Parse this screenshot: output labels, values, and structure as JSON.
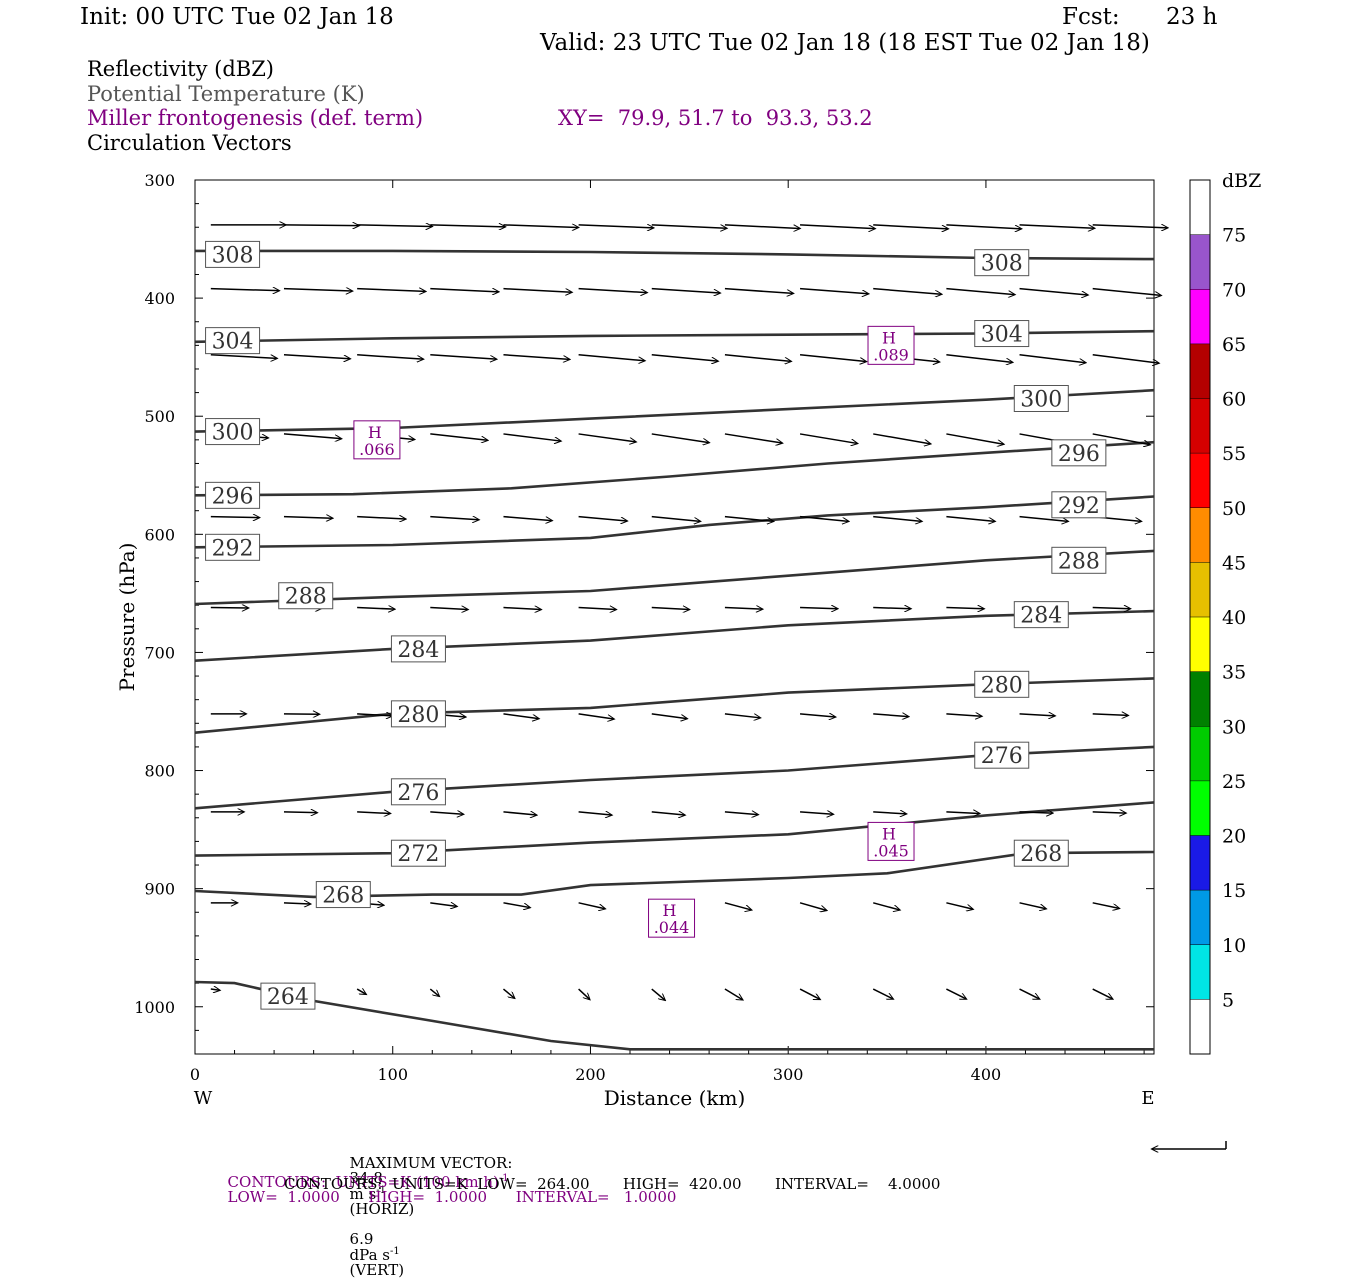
{
  "header": {
    "init": "Init: 00 UTC Tue 02 Jan 18",
    "fcst_label": "Fcst:",
    "fcst_value": "23 h",
    "valid": "Valid: 23 UTC Tue 02 Jan 18 (18 EST Tue 02 Jan 18)",
    "fields": [
      {
        "text": "Reflectivity (dBZ)",
        "color": "#000000"
      },
      {
        "text": "Potential Temperature (K)",
        "color": "#555555"
      },
      {
        "text": "Miller frontogenesis (def. term)",
        "color": "#800080"
      },
      {
        "text": "Circulation Vectors",
        "color": "#000000"
      }
    ],
    "xy": "XY=  79.9, 51.7 to  93.3, 53.2"
  },
  "chart_data": {
    "type": "line",
    "title": "",
    "xlabel": "Distance (km)",
    "ylabel": "Pressure (hPa)",
    "xlim": [
      0,
      485
    ],
    "ylim": [
      300,
      1040
    ],
    "y_inverted": true,
    "x_ticks": [
      0,
      100,
      200,
      300,
      400
    ],
    "y_ticks": [
      300,
      400,
      500,
      600,
      700,
      800,
      900,
      1000
    ],
    "x_end_labels": {
      "left": "W",
      "right": "E"
    },
    "isentropes": [
      {
        "label": "308",
        "x": [
          0,
          100,
          200,
          300,
          400,
          485
        ],
        "y": [
          360,
          360,
          361,
          363,
          366,
          367
        ],
        "label_pts": [
          [
            19,
            363
          ],
          [
            408,
            370
          ]
        ]
      },
      {
        "label": "304",
        "x": [
          0,
          100,
          200,
          300,
          400,
          485
        ],
        "y": [
          437,
          434,
          432,
          431,
          430,
          428
        ],
        "label_pts": [
          [
            19,
            436
          ],
          [
            408,
            430
          ]
        ]
      },
      {
        "label": "300",
        "x": [
          0,
          100,
          200,
          300,
          400,
          485
        ],
        "y": [
          513,
          510,
          502,
          494,
          486,
          478
        ],
        "label_pts": [
          [
            19,
            513
          ],
          [
            428,
            485
          ]
        ]
      },
      {
        "label": "296",
        "x": [
          0,
          80,
          160,
          240,
          320,
          400,
          485
        ],
        "y": [
          567,
          566,
          561,
          551,
          540,
          531,
          522
        ],
        "label_pts": [
          [
            19,
            567
          ],
          [
            447,
            531
          ]
        ]
      },
      {
        "label": "292",
        "x": [
          0,
          100,
          200,
          260,
          320,
          400,
          485
        ],
        "y": [
          611,
          609,
          603,
          592,
          584,
          577,
          568
        ],
        "label_pts": [
          [
            19,
            611
          ],
          [
            447,
            575
          ]
        ]
      },
      {
        "label": "288",
        "x": [
          0,
          100,
          200,
          300,
          400,
          485
        ],
        "y": [
          659,
          653,
          648,
          635,
          622,
          614
        ],
        "label_pts": [
          [
            56,
            652
          ],
          [
            447,
            622
          ]
        ]
      },
      {
        "label": "284",
        "x": [
          0,
          100,
          200,
          300,
          400,
          485
        ],
        "y": [
          707,
          697,
          690,
          677,
          669,
          665
        ],
        "label_pts": [
          [
            113,
            697
          ],
          [
            428,
            668
          ]
        ]
      },
      {
        "label": "280",
        "x": [
          0,
          100,
          200,
          300,
          400,
          485
        ],
        "y": [
          768,
          752,
          747,
          734,
          727,
          722
        ],
        "label_pts": [
          [
            113,
            752
          ],
          [
            408,
            727
          ]
        ]
      },
      {
        "label": "276",
        "x": [
          0,
          100,
          200,
          300,
          400,
          485
        ],
        "y": [
          832,
          818,
          808,
          800,
          787,
          780
        ],
        "label_pts": [
          [
            113,
            818
          ],
          [
            408,
            787
          ]
        ]
      },
      {
        "label": "272",
        "x": [
          0,
          100,
          200,
          300,
          400,
          485
        ],
        "y": [
          872,
          870,
          861,
          854,
          838,
          827
        ],
        "label_pts": [
          [
            113,
            870
          ]
        ]
      },
      {
        "label": "268",
        "x": [
          0,
          60,
          120,
          165,
          200,
          300,
          350,
          420,
          485
        ],
        "y": [
          902,
          907,
          905,
          905,
          897,
          891,
          887,
          870,
          869
        ],
        "label_pts": [
          [
            75,
            905
          ],
          [
            428,
            870
          ]
        ]
      },
      {
        "label": "264",
        "x": [
          0,
          20,
          60,
          120,
          180,
          220,
          300,
          485
        ],
        "y": [
          979,
          980,
          995,
          1012,
          1029,
          1036,
          1036,
          1036
        ],
        "label_pts": [
          [
            47,
            991
          ]
        ]
      }
    ],
    "frontogenesis_maxima": [
      {
        "label": "H",
        "value": ".089",
        "x": 352,
        "y": 440
      },
      {
        "label": "H",
        "value": ".066",
        "x": 92,
        "y": 520
      },
      {
        "label": "H",
        "value": ".045",
        "x": 352,
        "y": 860
      },
      {
        "label": "H",
        "value": ".044",
        "x": 241,
        "y": 925
      }
    ],
    "vector_rows": [
      {
        "p": 338,
        "x": [
          8,
          45,
          82,
          119,
          156,
          194,
          231,
          268,
          306,
          343,
          380,
          417,
          454
        ],
        "u": [
          34,
          34,
          34,
          34,
          34,
          34,
          34,
          34,
          34,
          34,
          34,
          34,
          34
        ],
        "w": [
          0.0,
          0.4,
          0.8,
          1.0,
          1.3,
          1.5,
          1.7,
          1.8,
          1.9,
          2.0,
          2.0,
          1.7,
          1.5
        ]
      },
      {
        "p": 392,
        "x": [
          8,
          45,
          82,
          119,
          156,
          194,
          231,
          268,
          306,
          343,
          380,
          417,
          454
        ],
        "u": [
          31,
          31,
          31,
          31,
          31,
          31,
          31,
          31,
          31,
          31,
          31,
          31,
          31
        ],
        "w": [
          1.0,
          1.2,
          1.4,
          1.6,
          1.8,
          2.0,
          2.2,
          2.4,
          2.6,
          2.8,
          3.0,
          3.2,
          3.4
        ]
      },
      {
        "p": 448,
        "x": [
          8,
          45,
          82,
          119,
          156,
          194,
          231,
          268,
          306,
          343,
          380,
          417,
          454
        ],
        "u": [
          30,
          30,
          30,
          30,
          30,
          30,
          30,
          30,
          30,
          30,
          30,
          30,
          30
        ],
        "w": [
          1.8,
          2.0,
          2.2,
          2.2,
          2.3,
          3.0,
          3.2,
          3.3,
          3.4,
          3.6,
          3.8,
          4.0,
          4.2
        ]
      },
      {
        "p": 515,
        "x": [
          8,
          45,
          82,
          119,
          156,
          194,
          231,
          268,
          306,
          343,
          380,
          417,
          454
        ],
        "u": [
          26,
          26,
          26,
          26,
          26,
          26,
          26,
          26,
          26,
          26,
          26,
          26,
          26
        ],
        "w": [
          2.0,
          2.4,
          2.8,
          3.2,
          3.6,
          4.0,
          4.4,
          4.6,
          4.8,
          5.0,
          5.2,
          5.2,
          5.4
        ]
      },
      {
        "p": 585,
        "x": [
          8,
          45,
          82,
          119,
          156,
          194,
          231,
          268,
          306,
          343,
          380,
          417,
          454
        ],
        "u": [
          22,
          22,
          22,
          22,
          22,
          22,
          22,
          22,
          22,
          22,
          22,
          22,
          22
        ],
        "w": [
          0.5,
          0.8,
          1.2,
          1.6,
          2.0,
          2.2,
          2.4,
          2.4,
          2.4,
          2.4,
          2.4,
          2.4,
          2.4
        ]
      },
      {
        "p": 662,
        "x": [
          8,
          45,
          82,
          119,
          156,
          194,
          231,
          268,
          306,
          343,
          380,
          417,
          454
        ],
        "u": [
          17,
          17,
          17,
          17,
          17,
          17,
          17,
          17,
          17,
          17,
          17,
          17,
          17
        ],
        "w": [
          0.2,
          0.4,
          0.8,
          1.0,
          1.0,
          1.0,
          1.0,
          0.8,
          0.6,
          0.6,
          0.6,
          0.6,
          0.6
        ]
      },
      {
        "p": 752,
        "x": [
          8,
          45,
          82,
          119,
          156,
          194,
          231,
          268,
          306,
          343,
          380,
          417,
          454
        ],
        "u": [
          16,
          16,
          16,
          16,
          16,
          16,
          16,
          16,
          16,
          16,
          16,
          16,
          16
        ],
        "w": [
          0.0,
          0.2,
          1.0,
          1.6,
          2.4,
          2.6,
          2.4,
          2.0,
          1.6,
          1.4,
          1.2,
          1.0,
          0.8
        ]
      },
      {
        "p": 835,
        "x": [
          8,
          45,
          82,
          119,
          156,
          194,
          231,
          268,
          306,
          343,
          380,
          417,
          454
        ],
        "u": [
          15,
          15,
          15,
          15,
          15,
          15,
          15,
          15,
          15,
          15,
          15,
          15,
          15
        ],
        "w": [
          0.0,
          0.4,
          0.8,
          1.2,
          1.6,
          1.6,
          1.6,
          1.4,
          1.2,
          1.0,
          0.8,
          0.6,
          0.6
        ]
      },
      {
        "p": 912,
        "x": [
          8,
          45,
          82,
          119,
          156,
          194,
          231,
          268,
          306,
          343,
          380,
          417,
          454
        ],
        "u": [
          12,
          12,
          12,
          12,
          12,
          12,
          12,
          12,
          12,
          12,
          12,
          12,
          12
        ],
        "w": [
          0.0,
          0.6,
          1.2,
          1.8,
          2.4,
          3.0,
          3.4,
          3.6,
          3.8,
          3.6,
          3.2,
          3.0,
          2.8
        ]
      },
      {
        "p": 985,
        "x": [
          8,
          45,
          82,
          119,
          156,
          194,
          231,
          268,
          306,
          343,
          380,
          417,
          454
        ],
        "u": [
          4,
          4,
          4,
          4,
          5,
          5,
          6,
          8,
          9,
          9,
          9,
          9,
          9
        ],
        "w": [
          0.6,
          1.6,
          2.6,
          3.6,
          4.6,
          5.2,
          5.6,
          5.4,
          5.2,
          5.0,
          5.0,
          5.0,
          5.0
        ]
      }
    ],
    "colorbar": {
      "unit": "dBZ",
      "levels": [
        5,
        10,
        15,
        20,
        25,
        30,
        35,
        40,
        45,
        50,
        55,
        60,
        65,
        70,
        75
      ],
      "colors": [
        "#ffffff",
        "#00e5e5",
        "#0099e6",
        "#1a1ae6",
        "#00ff00",
        "#00cc00",
        "#008000",
        "#ffff00",
        "#e6c000",
        "#ff8c00",
        "#ff0000",
        "#d50000",
        "#b40000",
        "#ff00ff",
        "#9955cc",
        "#ffffff"
      ]
    }
  },
  "footer": {
    "max_vector_prefix": "MAXIMUM VECTOR:",
    "max_horiz_value": "34.8",
    "max_horiz_unit": "m s",
    "exponent": "-1",
    "horiz_suffix": "(HORIZ)",
    "max_vert_value": "6.9",
    "max_vert_unit": "dPa s",
    "vert_suffix": "(VERT)",
    "contours_purple_a": "CONTOURS:  UNITS=K (100 km h)",
    "contours_purple_b": "LOW=  1.0000      HIGH=  1.0000      INTERVAL=   1.0000",
    "contours_black": "CONTOURS:  UNITS=K  LOW=  264.00       HIGH=  420.00       INTERVAL=    4.0000",
    "colors": {
      "purple": "#800080",
      "black": "#000000"
    }
  }
}
